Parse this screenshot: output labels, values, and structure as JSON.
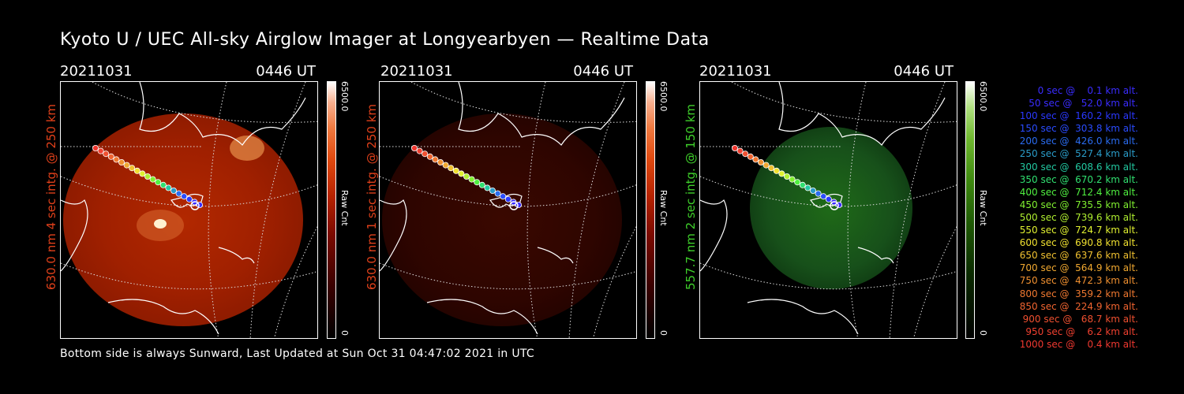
{
  "title": "Kyoto U / UEC All-sky Airglow Imager at Longyearbyen — Realtime Data",
  "footer": "Bottom side is always Sunward, Last Updated at Sun Oct 31 04:47:02 2021 in UTC",
  "panels": [
    {
      "date": "20211031",
      "time": "0446 UT",
      "label": "630.0 nm 4 sec intg. @ 250 km",
      "color": "#e0401a",
      "cbar_max": "6500.0",
      "cbar_unit": "Raw Cnt",
      "cbar_min": "0"
    },
    {
      "date": "20211031",
      "time": "0446 UT",
      "label": "630.0 nm 1 sec intg. @ 250 km",
      "color": "#e0401a",
      "cbar_max": "6500.0",
      "cbar_unit": "Raw Cnt",
      "cbar_min": "0"
    },
    {
      "date": "20211031",
      "time": "0446 UT",
      "label": "557.7 nm 2 sec intg. @ 150 km",
      "color": "#3ecf2a",
      "cbar_max": "6500.0",
      "cbar_unit": "Raw Cnt",
      "cbar_min": "0"
    }
  ],
  "legend": [
    {
      "text": "   0 sec @    0.1 km alt.",
      "color": "#3a2cff"
    },
    {
      "text": "  50 sec @   52.0 km alt.",
      "color": "#3a2cff"
    },
    {
      "text": " 100 sec @  160.2 km alt.",
      "color": "#2a38ff"
    },
    {
      "text": " 150 sec @  303.8 km alt.",
      "color": "#2a4cff"
    },
    {
      "text": " 200 sec @  426.0 km alt.",
      "color": "#2a6cf0"
    },
    {
      "text": " 250 sec @  527.4 km alt.",
      "color": "#2a9cc8"
    },
    {
      "text": " 300 sec @  608.6 km alt.",
      "color": "#22c8a0"
    },
    {
      "text": " 350 sec @  670.2 km alt.",
      "color": "#30e070"
    },
    {
      "text": " 400 sec @  712.4 km alt.",
      "color": "#50f040"
    },
    {
      "text": " 450 sec @  735.5 km alt.",
      "color": "#80f030"
    },
    {
      "text": " 500 sec @  739.6 km alt.",
      "color": "#b0f030"
    },
    {
      "text": " 550 sec @  724.7 km alt.",
      "color": "#e0f030"
    },
    {
      "text": " 600 sec @  690.8 km alt.",
      "color": "#f0e030"
    },
    {
      "text": " 650 sec @  637.6 km alt.",
      "color": "#f0c030"
    },
    {
      "text": " 700 sec @  564.9 km alt.",
      "color": "#f0a830"
    },
    {
      "text": " 750 sec @  472.3 km alt.",
      "color": "#f09030"
    },
    {
      "text": " 800 sec @  359.2 km alt.",
      "color": "#f07830"
    },
    {
      "text": " 850 sec @  224.9 km alt.",
      "color": "#f06430"
    },
    {
      "text": " 900 sec @   68.7 km alt.",
      "color": "#f05030"
    },
    {
      "text": " 950 sec @    6.2 km alt.",
      "color": "#f04030"
    },
    {
      "text": "1000 sec @    0.4 km alt.",
      "color": "#f03830"
    }
  ]
}
